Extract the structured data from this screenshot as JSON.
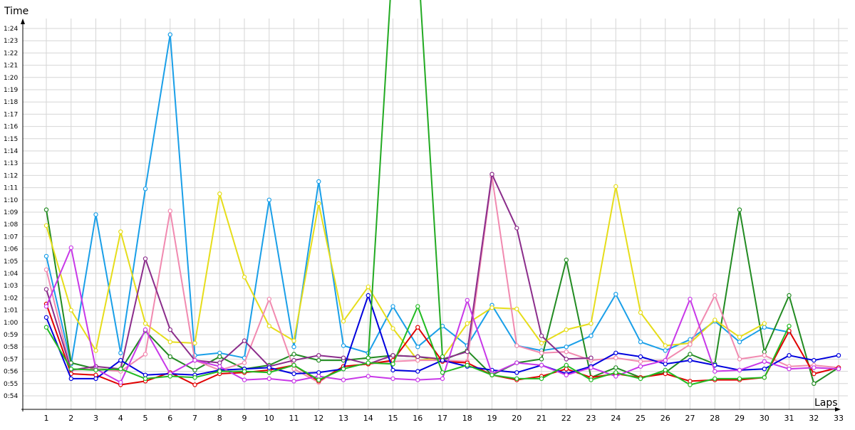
{
  "chart_data": {
    "type": "line",
    "title": "",
    "xlabel": "Laps",
    "ylabel": "Time",
    "grid": true,
    "legend": "none",
    "xlim": [
      0.0,
      33.3
    ],
    "ylim": [
      53.0,
      85.5
    ],
    "x": [
      1,
      2,
      3,
      4,
      5,
      6,
      7,
      8,
      9,
      10,
      11,
      12,
      13,
      14,
      15,
      16,
      17,
      18,
      19,
      20,
      21,
      22,
      23,
      24,
      25,
      26,
      27,
      28,
      29,
      30,
      31,
      32,
      33
    ],
    "x_tick_labels": [
      "1",
      "2",
      "3",
      "4",
      "5",
      "6",
      "7",
      "8",
      "9",
      "10",
      "11",
      "12",
      "13",
      "14",
      "15",
      "16",
      "17",
      "18",
      "19",
      "20",
      "21",
      "22",
      "23",
      "24",
      "25",
      "26",
      "27",
      "28",
      "29",
      "30",
      "31",
      "32",
      "33"
    ],
    "y_ticks": [
      {
        "v": 54,
        "label": "0:54"
      },
      {
        "v": 55,
        "label": "0:55"
      },
      {
        "v": 56,
        "label": "0:56"
      },
      {
        "v": 57,
        "label": "0:57"
      },
      {
        "v": 58,
        "label": "0:58"
      },
      {
        "v": 59,
        "label": "0:59"
      },
      {
        "v": 60,
        "label": "1:00"
      },
      {
        "v": 61,
        "label": "1:01"
      },
      {
        "v": 62,
        "label": "1:02"
      },
      {
        "v": 63,
        "label": "1:03"
      },
      {
        "v": 64,
        "label": "1:04"
      },
      {
        "v": 65,
        "label": "1:05"
      },
      {
        "v": 66,
        "label": "1:06"
      },
      {
        "v": 67,
        "label": "1:07"
      },
      {
        "v": 68,
        "label": "1:08"
      },
      {
        "v": 69,
        "label": "1:09"
      },
      {
        "v": 70,
        "label": "1:10"
      },
      {
        "v": 71,
        "label": "1:11"
      },
      {
        "v": 72,
        "label": "1:12"
      },
      {
        "v": 73,
        "label": "1:13"
      },
      {
        "v": 74,
        "label": "1:14"
      },
      {
        "v": 75,
        "label": "1:15"
      },
      {
        "v": 76,
        "label": "1:16"
      },
      {
        "v": 77,
        "label": "1:17"
      },
      {
        "v": 78,
        "label": "1:18"
      },
      {
        "v": 79,
        "label": "1:19"
      },
      {
        "v": 80,
        "label": "1:20"
      },
      {
        "v": 81,
        "label": "1:21"
      },
      {
        "v": 82,
        "label": "1:22"
      },
      {
        "v": 83,
        "label": "1:23"
      },
      {
        "v": 84,
        "label": "1:24"
      }
    ],
    "series": [
      {
        "color": "#1a9fe8",
        "values": [
          65.4,
          56.6,
          68.8,
          57.5,
          70.9,
          83.5,
          57.3,
          57.5,
          57.1,
          70.0,
          58.0,
          71.5,
          58.1,
          57.5,
          61.3,
          58.0,
          59.7,
          58.1,
          61.4,
          58.1,
          57.7,
          58.0,
          58.9,
          62.3,
          58.4,
          57.7,
          58.6,
          60.1,
          58.4,
          59.6,
          59.2,
          null,
          null
        ]
      },
      {
        "color": "#228b22",
        "values": [
          69.2,
          56.7,
          56.2,
          56.1,
          59.3,
          57.2,
          56.1,
          57.2,
          56.2,
          56.5,
          57.4,
          56.9,
          56.9,
          57.1,
          57.3,
          57.2,
          56.9,
          57.7,
          55.7,
          56.7,
          57.0,
          65.1,
          55.5,
          56.3,
          55.5,
          55.9,
          57.4,
          56.6,
          69.2,
          57.6,
          62.2,
          55.0,
          56.3
        ]
      },
      {
        "color": "#e6dd1a",
        "values": [
          67.9,
          61.0,
          57.7,
          67.4,
          59.9,
          58.4,
          58.3,
          70.5,
          63.7,
          59.7,
          58.5,
          69.7,
          60.1,
          62.9,
          59.5,
          56.9,
          57.1,
          59.9,
          61.2,
          61.1,
          58.3,
          59.4,
          59.9,
          71.1,
          60.8,
          58.1,
          58.3,
          60.2,
          58.8,
          59.9,
          null,
          null,
          null
        ]
      },
      {
        "color": "#f18ab0",
        "values": [
          64.3,
          56.1,
          56.2,
          56.0,
          57.4,
          69.1,
          56.9,
          56.1,
          56.7,
          61.9,
          56.2,
          55.1,
          56.4,
          56.6,
          56.8,
          56.9,
          56.9,
          56.8,
          71.9,
          58.1,
          57.5,
          57.6,
          56.9,
          57.1,
          56.8,
          56.9,
          58.2,
          62.2,
          57.0,
          57.3,
          56.4,
          56.5,
          56.3
        ]
      },
      {
        "color": "#8b2d8b",
        "values": [
          62.7,
          56.1,
          56.4,
          56.2,
          65.2,
          59.4,
          56.9,
          56.7,
          58.5,
          56.4,
          56.9,
          57.3,
          57.1,
          56.6,
          57.3,
          57.2,
          57.0,
          57.6,
          72.1,
          67.7,
          58.9,
          57.0,
          57.1,
          null,
          null,
          null,
          null,
          null,
          null,
          null,
          null,
          null,
          null
        ]
      },
      {
        "color": "#e00000",
        "values": [
          61.5,
          55.8,
          55.7,
          54.9,
          55.2,
          55.9,
          54.9,
          55.8,
          55.9,
          56.1,
          56.5,
          55.2,
          56.4,
          56.6,
          56.9,
          59.6,
          56.8,
          56.7,
          55.7,
          55.3,
          55.6,
          56.2,
          55.5,
          55.8,
          55.5,
          55.8,
          55.2,
          55.3,
          55.3,
          55.5,
          59.3,
          55.8,
          56.3
        ]
      },
      {
        "color": "#0000dd",
        "values": [
          60.4,
          55.4,
          55.4,
          56.9,
          55.7,
          55.8,
          55.7,
          56.1,
          56.2,
          56.3,
          55.8,
          55.9,
          56.2,
          62.2,
          56.1,
          56.0,
          56.9,
          56.4,
          56.1,
          55.9,
          56.5,
          55.8,
          56.4,
          57.5,
          57.2,
          56.6,
          56.9,
          56.5,
          56.1,
          56.2,
          57.3,
          56.9,
          57.3
        ]
      },
      {
        "color": "#c838e8",
        "values": [
          61.3,
          66.1,
          56.2,
          55.1,
          59.4,
          55.8,
          56.9,
          56.4,
          55.3,
          55.4,
          55.2,
          55.6,
          55.3,
          55.6,
          55.4,
          55.3,
          55.4,
          61.8,
          55.8,
          56.7,
          56.5,
          55.7,
          56.3,
          55.6,
          56.4,
          56.9,
          61.9,
          56.0,
          56.1,
          56.8,
          56.2,
          56.3,
          56.2
        ]
      },
      {
        "color": "#22bb22",
        "values": [
          59.6,
          56.2,
          56.1,
          56.2,
          55.4,
          55.6,
          55.5,
          56.0,
          56.0,
          55.9,
          56.5,
          55.3,
          56.2,
          56.7,
          56.6,
          61.3,
          55.9,
          56.5,
          55.7,
          55.4,
          55.4,
          56.5,
          55.3,
          55.9,
          55.4,
          56.1,
          54.9,
          55.4,
          55.4,
          55.5,
          59.7,
          null,
          null
        ]
      },
      {
        "color": "#22aa22",
        "values": [
          null,
          null,
          null,
          null,
          null,
          null,
          null,
          null,
          null,
          null,
          null,
          null,
          null,
          57.1,
          90.0,
          90.0,
          57.2,
          null,
          null,
          null,
          null,
          null,
          null,
          null,
          null,
          null,
          null,
          null,
          null,
          null,
          null,
          null,
          null
        ]
      }
    ]
  }
}
